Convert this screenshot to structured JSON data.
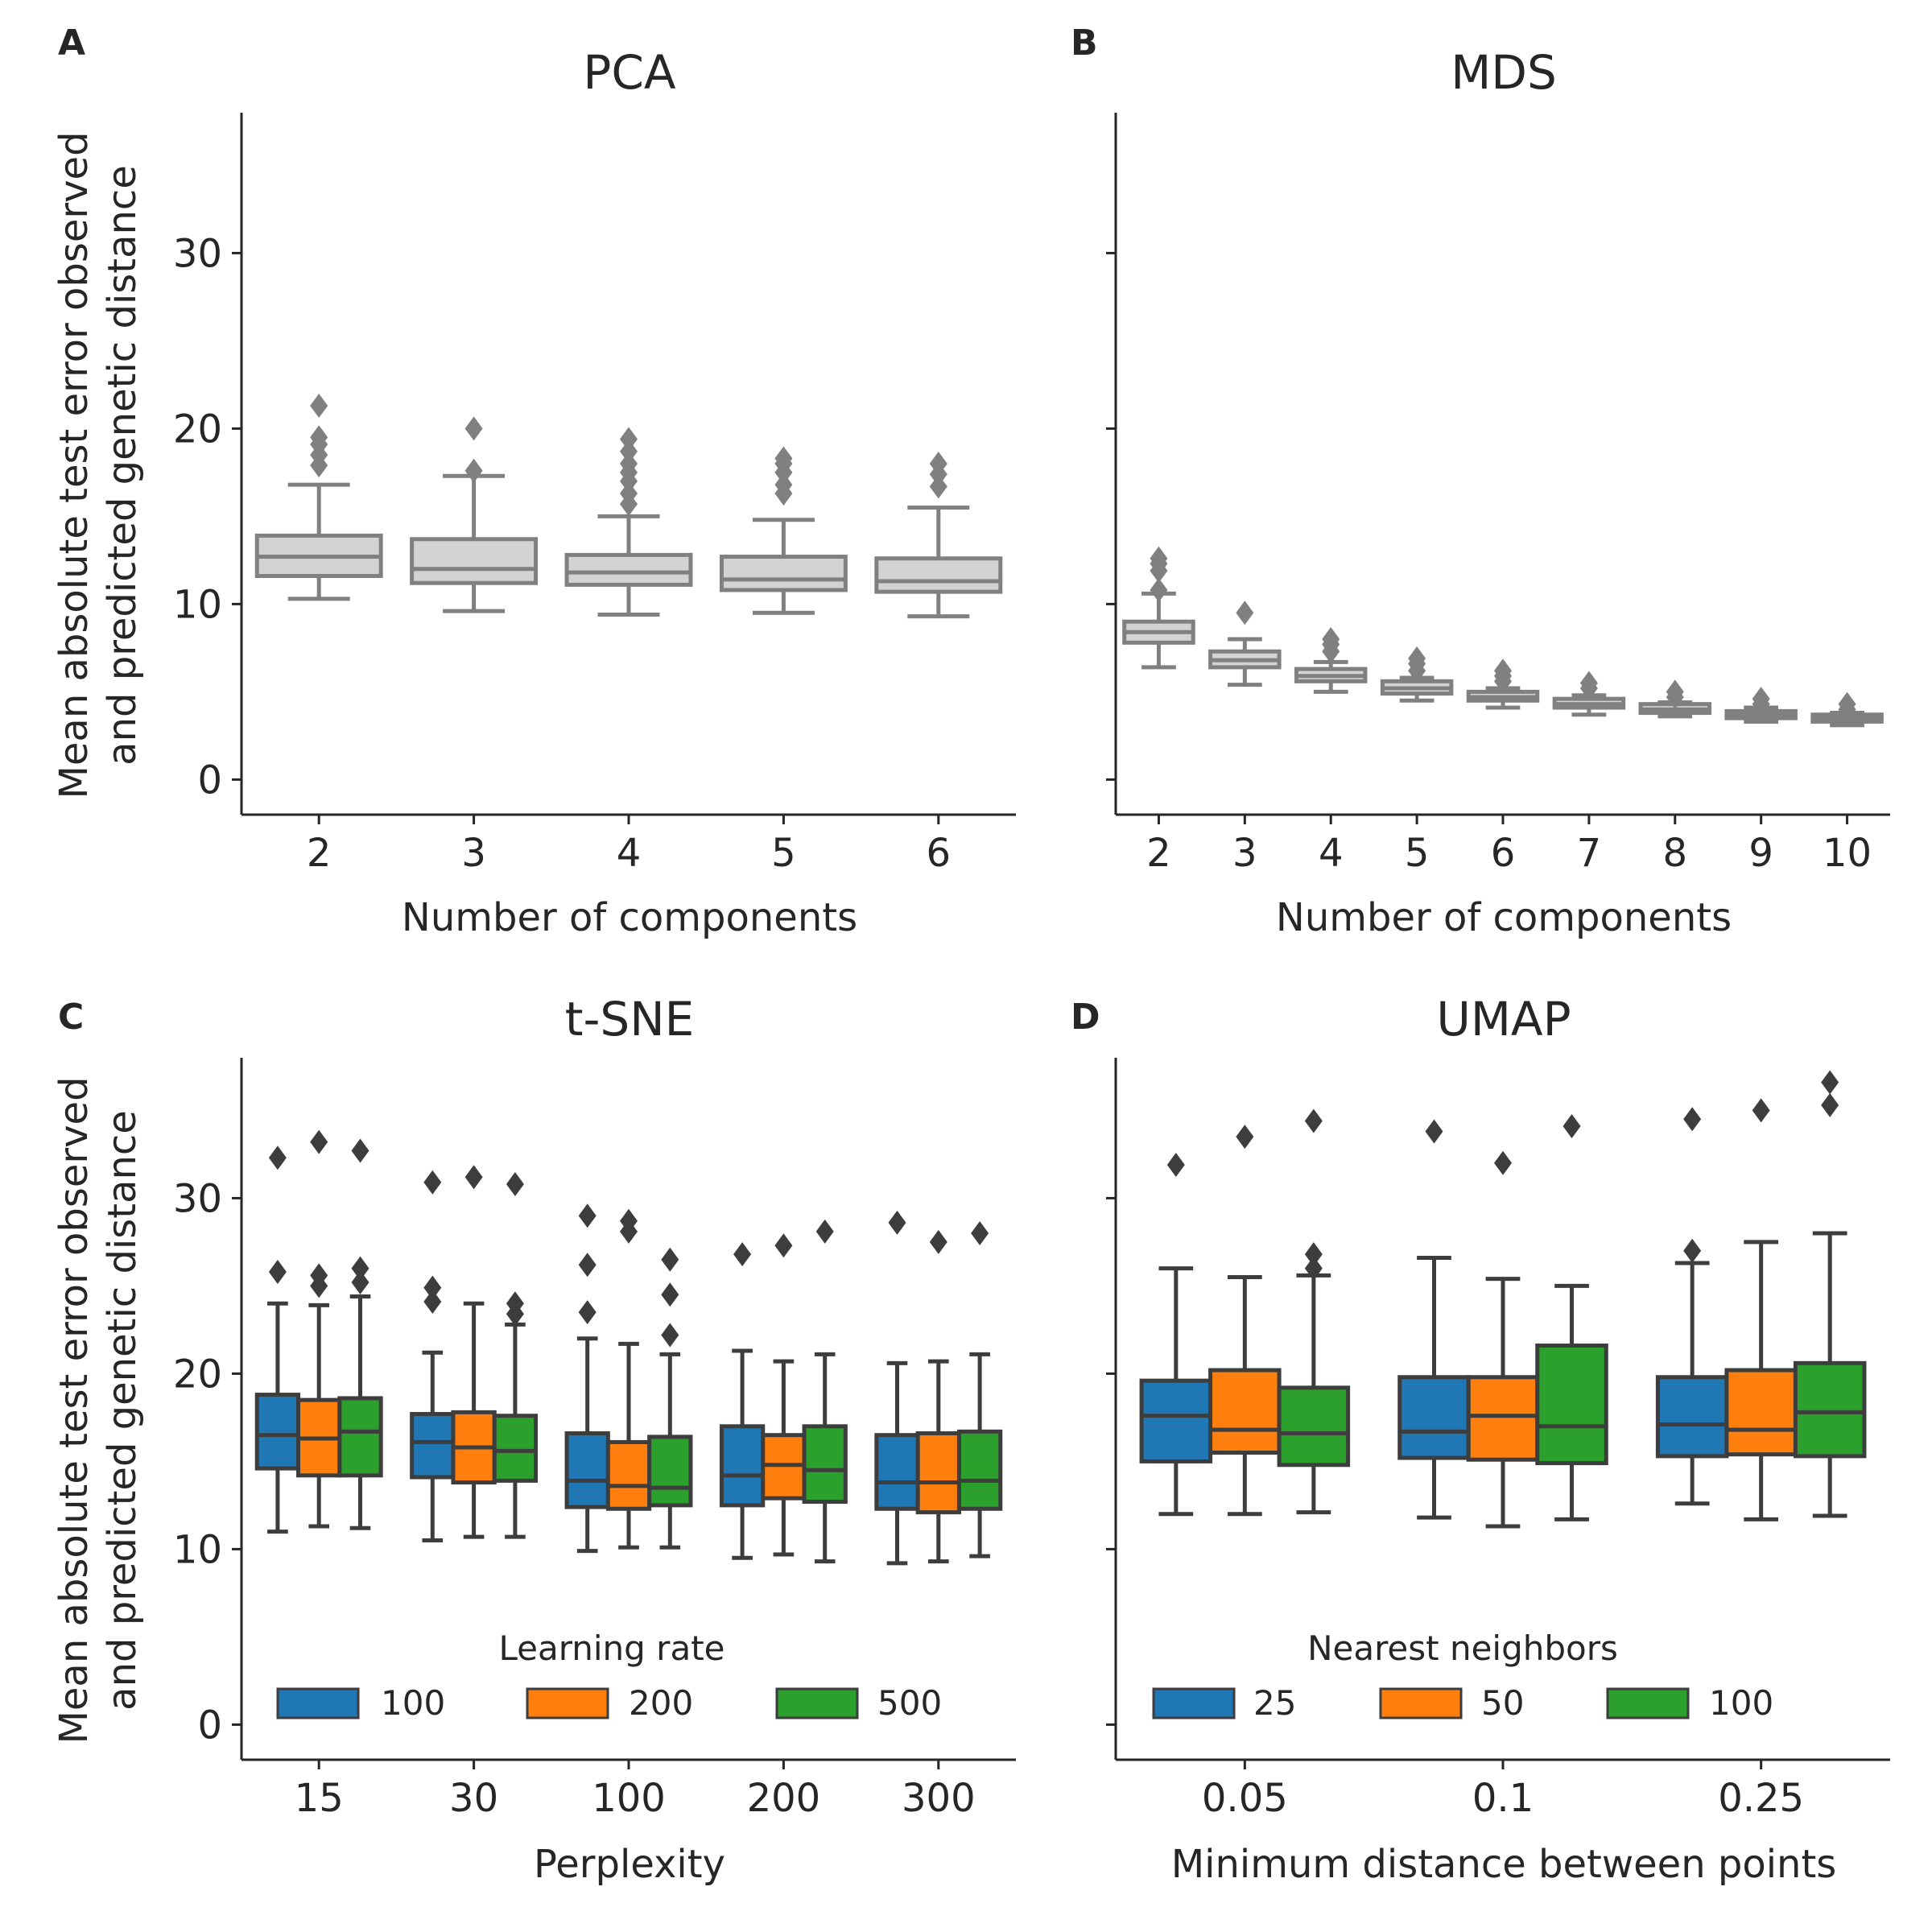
{
  "chart_data": [
    {
      "panel": "A",
      "title": "PCA",
      "type": "box",
      "xlabel": "Number of components",
      "ylabel_lines": [
        "Mean absolute test error observed",
        "and predicted genetic distance"
      ],
      "ylim": [
        -2,
        38
      ],
      "yticks": [
        0,
        10,
        20,
        30
      ],
      "show_ytick_labels": true,
      "categories": [
        "2",
        "3",
        "4",
        "5",
        "6"
      ],
      "box_color": "#d3d3d3",
      "line_color": "#808080",
      "series": [
        {
          "boxes": [
            {
              "whislo": 10.3,
              "q1": 11.6,
              "med": 12.7,
              "q3": 13.9,
              "whishi": 16.8,
              "fliers": [
                17.9,
                18.5,
                19.1,
                19.5,
                21.3
              ]
            },
            {
              "whislo": 9.6,
              "q1": 11.2,
              "med": 12.0,
              "q3": 13.7,
              "whishi": 17.3,
              "fliers": [
                17.6,
                20.0
              ]
            },
            {
              "whislo": 9.4,
              "q1": 11.1,
              "med": 11.8,
              "q3": 12.8,
              "whishi": 15.0,
              "fliers": [
                15.7,
                16.3,
                17.0,
                17.5,
                18.0,
                18.7,
                19.4
              ]
            },
            {
              "whislo": 9.5,
              "q1": 10.8,
              "med": 11.4,
              "q3": 12.7,
              "whishi": 14.8,
              "fliers": [
                16.3,
                16.8,
                17.5,
                18.0,
                18.3
              ]
            },
            {
              "whislo": 9.3,
              "q1": 10.7,
              "med": 11.3,
              "q3": 12.6,
              "whishi": 15.5,
              "fliers": [
                16.7,
                17.4,
                18.0
              ]
            }
          ]
        }
      ]
    },
    {
      "panel": "B",
      "title": "MDS",
      "type": "box",
      "xlabel": "Number of components",
      "ylim": [
        -2,
        38
      ],
      "yticks": [
        0,
        10,
        20,
        30
      ],
      "show_ytick_labels": false,
      "categories": [
        "2",
        "3",
        "4",
        "5",
        "6",
        "7",
        "8",
        "9",
        "10"
      ],
      "box_color": "#d3d3d3",
      "line_color": "#808080",
      "series": [
        {
          "boxes": [
            {
              "whislo": 6.4,
              "q1": 7.8,
              "med": 8.4,
              "q3": 9.0,
              "whishi": 10.6,
              "fliers": [
                10.8,
                11.9,
                12.3,
                12.6
              ]
            },
            {
              "whislo": 5.4,
              "q1": 6.4,
              "med": 6.8,
              "q3": 7.3,
              "whishi": 8.0,
              "fliers": [
                9.5
              ]
            },
            {
              "whislo": 5.0,
              "q1": 5.6,
              "med": 5.9,
              "q3": 6.3,
              "whishi": 6.7,
              "fliers": [
                7.3,
                7.7,
                8.0
              ]
            },
            {
              "whislo": 4.5,
              "q1": 4.9,
              "med": 5.2,
              "q3": 5.6,
              "whishi": 5.8,
              "fliers": [
                6.2,
                6.6,
                6.9
              ]
            },
            {
              "whislo": 4.1,
              "q1": 4.5,
              "med": 4.7,
              "q3": 5.0,
              "whishi": 5.2,
              "fliers": [
                5.6,
                5.9,
                6.2
              ]
            },
            {
              "whislo": 3.7,
              "q1": 4.1,
              "med": 4.3,
              "q3": 4.6,
              "whishi": 4.8,
              "fliers": [
                5.2,
                5.5
              ]
            },
            {
              "whislo": 3.6,
              "q1": 3.8,
              "med": 4.0,
              "q3": 4.3,
              "whishi": 4.4,
              "fliers": [
                4.7,
                5.0
              ]
            },
            {
              "whislo": 3.3,
              "q1": 3.5,
              "med": 3.7,
              "q3": 3.9,
              "whishi": 4.1,
              "fliers": [
                4.3,
                4.6
              ]
            },
            {
              "whislo": 3.1,
              "q1": 3.3,
              "med": 3.5,
              "q3": 3.7,
              "whishi": 3.8,
              "fliers": [
                4.0,
                4.3
              ]
            }
          ]
        }
      ]
    },
    {
      "panel": "C",
      "title": "t-SNE",
      "type": "box",
      "xlabel": "Perplexity",
      "ylabel_lines": [
        "Mean absolute test error observed",
        "and predicted genetic distance"
      ],
      "ylim": [
        -2,
        38
      ],
      "yticks": [
        0,
        10,
        20,
        30
      ],
      "show_ytick_labels": true,
      "categories": [
        "15",
        "30",
        "100",
        "200",
        "300"
      ],
      "line_color": "#3d3d3d",
      "legend": {
        "title": "Learning rate",
        "placement": "lower-center"
      },
      "series": [
        {
          "name": "100",
          "color": "#1f77b4",
          "boxes": [
            {
              "whislo": 11.0,
              "q1": 14.6,
              "med": 16.5,
              "q3": 18.8,
              "whishi": 24.0,
              "fliers": [
                25.8,
                32.3
              ]
            },
            {
              "whislo": 10.5,
              "q1": 14.1,
              "med": 16.1,
              "q3": 17.7,
              "whishi": 21.2,
              "fliers": [
                24.1,
                24.9,
                30.9
              ]
            },
            {
              "whislo": 9.9,
              "q1": 12.4,
              "med": 13.9,
              "q3": 16.6,
              "whishi": 22.0,
              "fliers": [
                23.5,
                26.2,
                29.0
              ]
            },
            {
              "whislo": 9.5,
              "q1": 12.5,
              "med": 14.2,
              "q3": 17.0,
              "whishi": 21.3,
              "fliers": [
                26.8
              ]
            },
            {
              "whislo": 9.2,
              "q1": 12.3,
              "med": 13.8,
              "q3": 16.5,
              "whishi": 20.6,
              "fliers": [
                28.6
              ]
            }
          ]
        },
        {
          "name": "200",
          "color": "#ff7f0e",
          "boxes": [
            {
              "whislo": 11.3,
              "q1": 14.2,
              "med": 16.3,
              "q3": 18.5,
              "whishi": 23.9,
              "fliers": [
                25.0,
                25.6,
                33.2
              ]
            },
            {
              "whislo": 10.7,
              "q1": 13.8,
              "med": 15.8,
              "q3": 17.8,
              "whishi": 24.0,
              "fliers": [
                31.2
              ]
            },
            {
              "whislo": 10.1,
              "q1": 12.3,
              "med": 13.6,
              "q3": 16.1,
              "whishi": 21.7,
              "fliers": [
                28.1,
                28.7
              ]
            },
            {
              "whislo": 9.7,
              "q1": 12.9,
              "med": 14.8,
              "q3": 16.5,
              "whishi": 20.7,
              "fliers": [
                27.3
              ]
            },
            {
              "whislo": 9.3,
              "q1": 12.1,
              "med": 13.8,
              "q3": 16.6,
              "whishi": 20.7,
              "fliers": [
                27.5
              ]
            }
          ]
        },
        {
          "name": "500",
          "color": "#2ca02c",
          "boxes": [
            {
              "whislo": 11.2,
              "q1": 14.2,
              "med": 16.7,
              "q3": 18.6,
              "whishi": 24.4,
              "fliers": [
                25.2,
                26.0,
                32.7
              ]
            },
            {
              "whislo": 10.7,
              "q1": 13.9,
              "med": 15.6,
              "q3": 17.6,
              "whishi": 22.8,
              "fliers": [
                23.4,
                24.0,
                30.8
              ]
            },
            {
              "whislo": 10.1,
              "q1": 12.5,
              "med": 13.5,
              "q3": 16.4,
              "whishi": 21.1,
              "fliers": [
                22.2,
                24.5,
                26.5
              ]
            },
            {
              "whislo": 9.3,
              "q1": 12.7,
              "med": 14.5,
              "q3": 17.0,
              "whishi": 21.1,
              "fliers": [
                28.1
              ]
            },
            {
              "whislo": 9.6,
              "q1": 12.3,
              "med": 13.9,
              "q3": 16.7,
              "whishi": 21.1,
              "fliers": [
                28.0
              ]
            }
          ]
        }
      ]
    },
    {
      "panel": "D",
      "title": "UMAP",
      "type": "box",
      "xlabel": "Minimum distance between points",
      "ylim": [
        -2,
        38
      ],
      "yticks": [
        0,
        10,
        20,
        30
      ],
      "show_ytick_labels": false,
      "categories": [
        "0.05",
        "0.1",
        "0.25"
      ],
      "line_color": "#3d3d3d",
      "legend": {
        "title": "Nearest neighbors",
        "placement": "lower-center"
      },
      "series": [
        {
          "name": "25",
          "color": "#1f77b4",
          "boxes": [
            {
              "whislo": 12.0,
              "q1": 15.0,
              "med": 17.6,
              "q3": 19.6,
              "whishi": 26.0,
              "fliers": [
                31.9
              ]
            },
            {
              "whislo": 11.8,
              "q1": 15.2,
              "med": 16.7,
              "q3": 19.8,
              "whishi": 26.6,
              "fliers": [
                33.8
              ]
            },
            {
              "whislo": 12.6,
              "q1": 15.3,
              "med": 17.1,
              "q3": 19.8,
              "whishi": 26.3,
              "fliers": [
                27.0,
                34.5
              ]
            }
          ]
        },
        {
          "name": "50",
          "color": "#ff7f0e",
          "boxes": [
            {
              "whislo": 12.0,
              "q1": 15.5,
              "med": 16.8,
              "q3": 20.2,
              "whishi": 25.5,
              "fliers": [
                33.5
              ]
            },
            {
              "whislo": 11.3,
              "q1": 15.1,
              "med": 17.6,
              "q3": 19.8,
              "whishi": 25.4,
              "fliers": [
                32.0
              ]
            },
            {
              "whislo": 11.7,
              "q1": 15.4,
              "med": 16.8,
              "q3": 20.2,
              "whishi": 27.5,
              "fliers": [
                35.0
              ]
            }
          ]
        },
        {
          "name": "100",
          "color": "#2ca02c",
          "boxes": [
            {
              "whislo": 12.1,
              "q1": 14.8,
              "med": 16.6,
              "q3": 19.2,
              "whishi": 25.6,
              "fliers": [
                26.0,
                26.8,
                34.4
              ]
            },
            {
              "whislo": 11.7,
              "q1": 14.9,
              "med": 17.0,
              "q3": 21.6,
              "whishi": 25.0,
              "fliers": [
                34.1
              ]
            },
            {
              "whislo": 11.9,
              "q1": 15.3,
              "med": 17.8,
              "q3": 20.6,
              "whishi": 28.0,
              "fliers": [
                35.3,
                36.6
              ]
            }
          ]
        }
      ]
    }
  ]
}
